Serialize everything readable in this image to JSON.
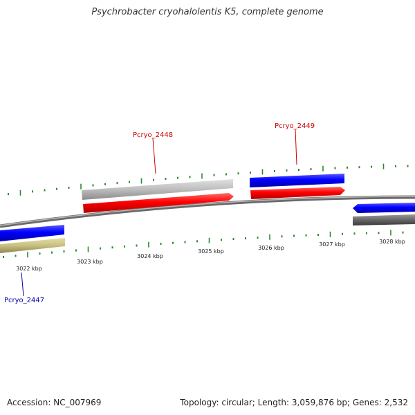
{
  "title": "Psychrobacter cryohalolentis K5, complete genome",
  "footer": {
    "accession_label": "Accession: NC_007969",
    "summary_label": "Topology: circular; Length: 3,059,876 bp; Genes: 2,532"
  },
  "colors": {
    "backbone": "#888888",
    "tick": "#2a8a2a",
    "label_plus": "#cc0000",
    "label_minus": "#0000aa",
    "cds_red": "#ff0000",
    "cds_blue": "#0000ff",
    "cds_gray": "#bbbbbb",
    "cds_dark": "#666666",
    "cds_olive": "#c8c080"
  },
  "ticks": [
    "3022 kbp",
    "3023 kbp",
    "3024 kbp",
    "3025 kbp",
    "3026 kbp",
    "3027 kbp",
    "3028 kbp"
  ],
  "genes": [
    {
      "label": "Pcryo_2448",
      "strand": "+"
    },
    {
      "label": "Pcryo_2449",
      "strand": "+"
    },
    {
      "label": "Pcryo_2447",
      "strand": "-"
    }
  ]
}
